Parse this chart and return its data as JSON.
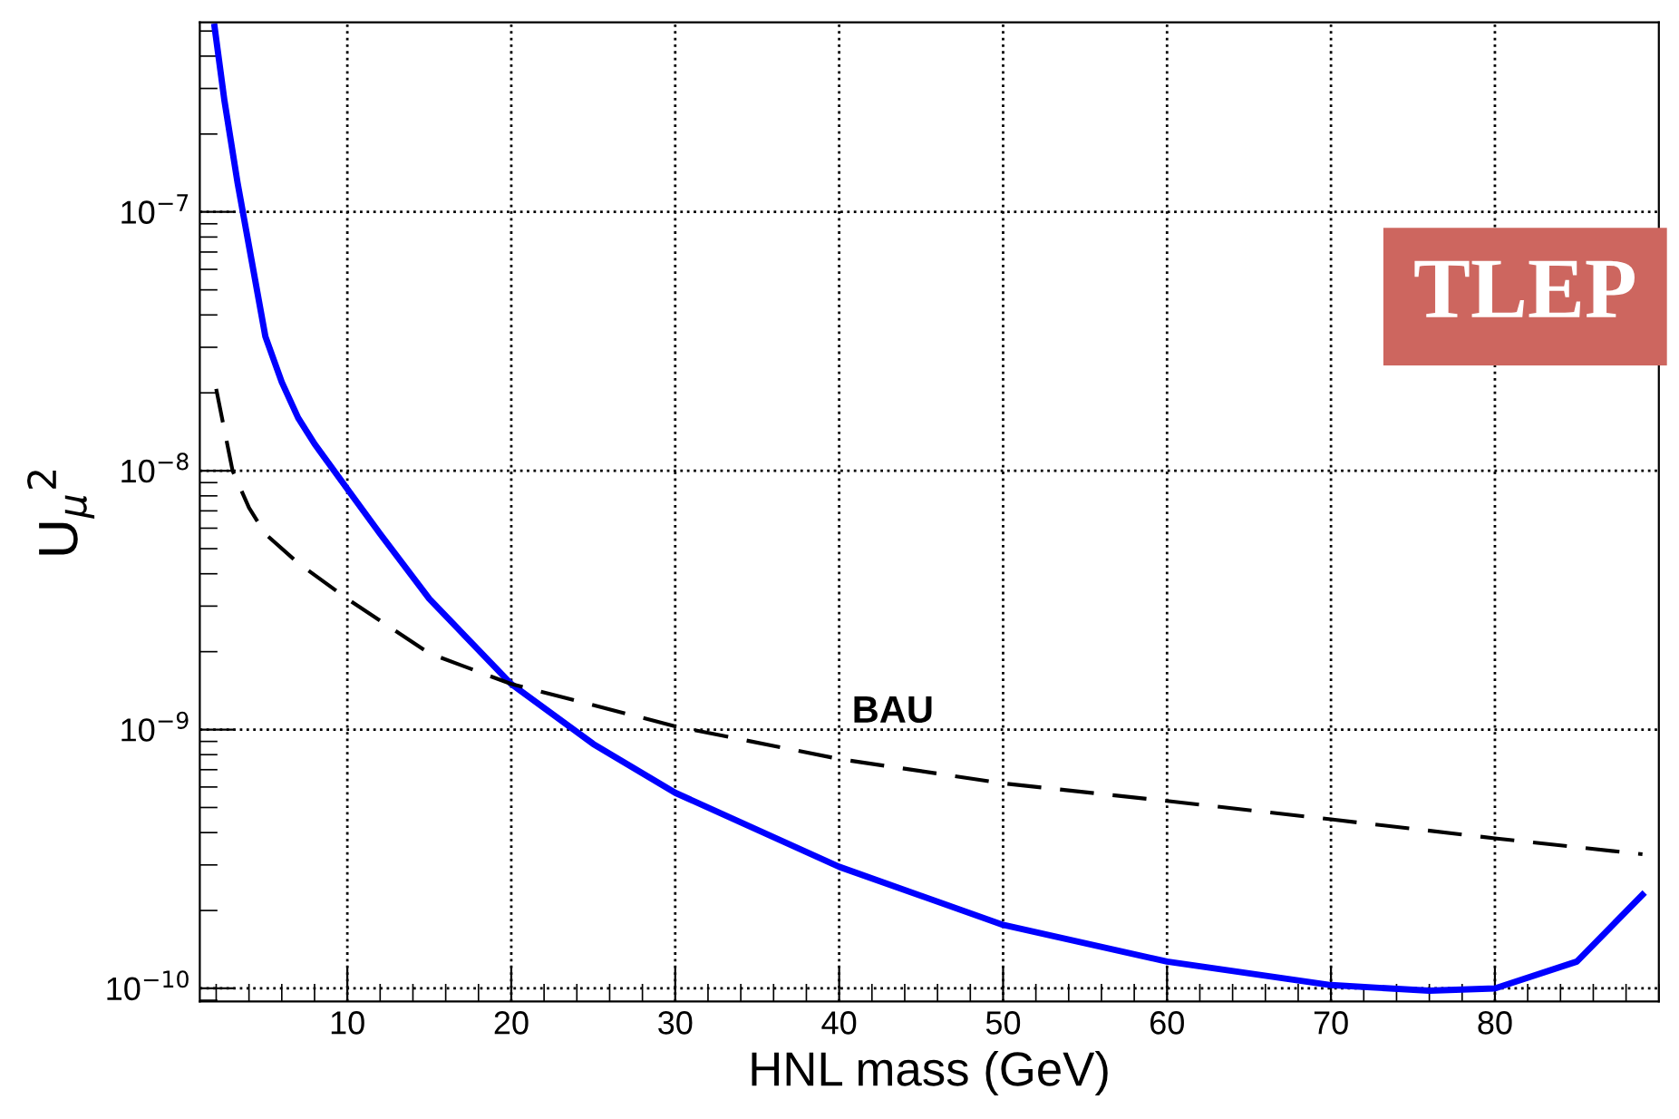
{
  "chart_data": {
    "type": "line",
    "xlabel": "HNL mass (GeV)",
    "ylabel": "U$_{μ}$$^{2}$",
    "log": "y",
    "grid": true,
    "legend": false,
    "xlim": [
      1,
      90
    ],
    "xticks": [
      10,
      20,
      30,
      40,
      50,
      60,
      70,
      80
    ],
    "ylim": [
      8.9e-11,
      5.4e-07
    ],
    "yticks": [
      {
        "value": 1e-10,
        "label": "10$^{−10}$"
      },
      {
        "value": 1e-09,
        "label": "10$^{−9}$"
      },
      {
        "value": 1e-08,
        "label": "10$^{−8}$"
      },
      {
        "value": 1e-07,
        "label": "10$^{−7}$"
      }
    ],
    "series": [
      {
        "color": "#0000ff",
        "line_style": "solid",
        "x": [
          1.9,
          2.5,
          3.3,
          5,
          6,
          7,
          8,
          10,
          12,
          15,
          20,
          25,
          30,
          40,
          50,
          60,
          70,
          76,
          80,
          85,
          89
        ],
        "values": [
          5.2e-07,
          2.7e-07,
          1.3e-07,
          3.3e-08,
          2.2e-08,
          1.6e-08,
          1.27e-08,
          8.5e-09,
          5.7e-09,
          3.2e-09,
          1.5e-09,
          8.8e-10,
          5.7e-10,
          2.95e-10,
          1.76e-10,
          1.27e-10,
          1.03e-10,
          9.8e-11,
          1e-10,
          1.27e-10,
          2.3e-10
        ]
      },
      {
        "color": "#000000",
        "line_style": "dashed",
        "x": [
          2,
          3,
          4,
          5,
          7,
          10,
          15,
          20,
          30,
          40,
          50,
          60,
          70,
          80,
          89
        ],
        "values": [
          2.07e-08,
          1e-08,
          7.2e-09,
          5.7e-09,
          4.4e-09,
          3.2e-09,
          1.97e-09,
          1.5e-09,
          1.03e-09,
          7.7e-10,
          6.2e-10,
          5.3e-10,
          4.5e-10,
          3.8e-10,
          3.3e-10
        ]
      }
    ],
    "annotations": [
      "BAU",
      "TLEP"
    ]
  }
}
